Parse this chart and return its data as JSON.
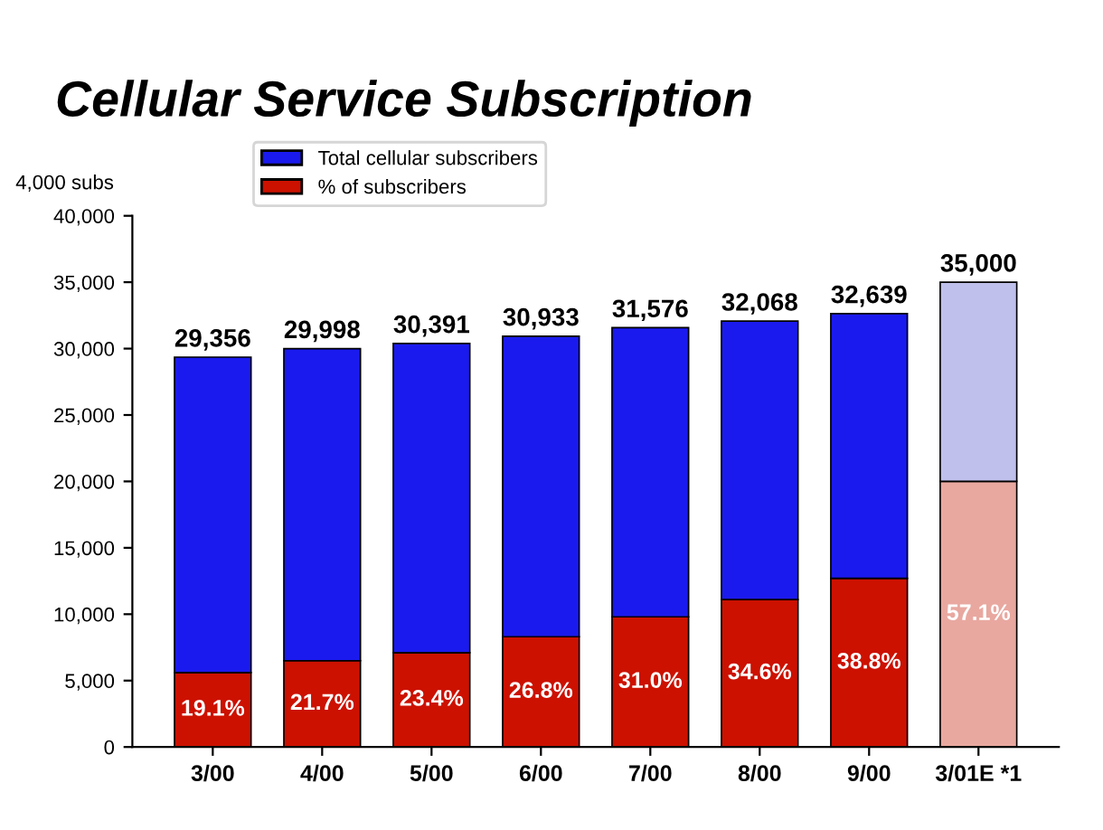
{
  "chart_data": {
    "type": "bar",
    "title": "Cellular Service Subscription",
    "ylabel": "4,000 subs",
    "categories": [
      "3/00",
      "4/00",
      "5/00",
      "6/00",
      "7/00",
      "8/00",
      "9/00",
      "3/01E *1"
    ],
    "stacked": true,
    "series": [
      {
        "name": "% of subscribers",
        "color": "#cc1100",
        "colors": [
          "#cc1100",
          "#cc1100",
          "#cc1100",
          "#cc1100",
          "#cc1100",
          "#cc1100",
          "#cc1100",
          "#e8a8a0"
        ],
        "values": [
          5600,
          6500,
          7100,
          8300,
          9800,
          11100,
          12700,
          20000
        ]
      },
      {
        "name": "Total cellular subscribers",
        "color": "#1a1aee",
        "colors": [
          "#1a1aee",
          "#1a1aee",
          "#1a1aee",
          "#1a1aee",
          "#1a1aee",
          "#1a1aee",
          "#1a1aee",
          "#c0c0ec"
        ],
        "values": [
          23756,
          23498,
          23291,
          22633,
          21776,
          20968,
          19939,
          15000
        ]
      }
    ],
    "annotations": [
      "19.1%",
      "21.7%",
      "23.4%",
      "26.8%",
      "31.0%",
      "34.6%",
      "38.8%",
      "57.1%"
    ],
    "totals": [
      "29,356",
      "29,998",
      "30,391",
      "30,933",
      "31,576",
      "32,068",
      "32,639",
      "35,000"
    ],
    "ylim": [
      0,
      40000
    ],
    "yticks": [
      {
        "value": 0,
        "label": "0"
      },
      {
        "value": 5000,
        "label": "5,000"
      },
      {
        "value": 10000,
        "label": "10,000"
      },
      {
        "value": 15000,
        "label": "15,000"
      },
      {
        "value": 20000,
        "label": "20,000"
      },
      {
        "value": 25000,
        "label": "25,000"
      },
      {
        "value": 30000,
        "label": "30,000"
      },
      {
        "value": 35000,
        "label": "35,000"
      },
      {
        "value": 40000,
        "label": "40,000"
      }
    ],
    "grid": false,
    "legend": "top left"
  }
}
